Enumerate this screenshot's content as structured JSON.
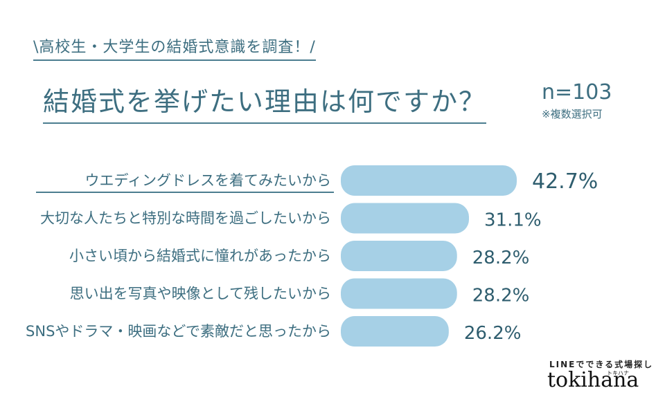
{
  "header": {
    "subtitle": "\\高校生・大学生の結婚式意識を調査！/",
    "title": "結婚式を挙げたい理由は何ですか？",
    "sample": "n=103",
    "note": "※複数選択可"
  },
  "brand": {
    "tagline": "LINEでできる式場探し",
    "kana": "トキハナ",
    "logo": "tokihana"
  },
  "colors": {
    "bar": "#a6d0e6",
    "text": "#3d6e80",
    "underline": "#4a7d8f"
  },
  "chart_data": {
    "type": "bar",
    "orientation": "horizontal",
    "categories": [
      "ウエディングドレスを着てみたいから",
      "大切な人たちと特別な時間を過ごしたいから",
      "小さい頃から結婚式に憧れがあったから",
      "思い出を写真や映像として残したいから",
      "SNSやドラマ・映画などで素敵だと思ったから"
    ],
    "values": [
      42.7,
      31.1,
      28.2,
      28.2,
      26.2
    ],
    "value_labels": [
      "42.7%",
      "31.1%",
      "28.2%",
      "28.2%",
      "26.2%"
    ],
    "unit": "%",
    "highlight_index": 0,
    "title": "結婚式を挙げたい理由は何ですか？",
    "xlabel": "",
    "ylabel": ""
  }
}
